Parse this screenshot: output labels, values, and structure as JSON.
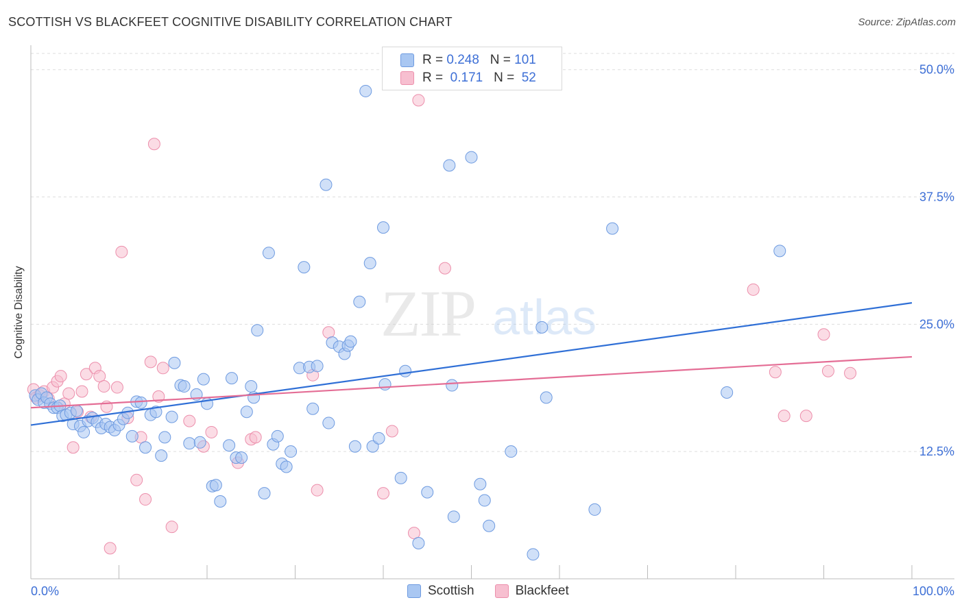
{
  "header": {
    "title": "SCOTTISH VS BLACKFEET COGNITIVE DISABILITY CORRELATION CHART",
    "source": "Source: ZipAtlas.com"
  },
  "legend": {
    "rows": [
      {
        "r_label": "R =",
        "r_value": "0.248",
        "n_label": "N =",
        "n_value": "101"
      },
      {
        "r_label": "R =",
        "r_value": " 0.171",
        "n_label": "N =",
        "n_value": " 52"
      }
    ]
  },
  "bottom_legend": [
    "Scottish",
    "Blackfeet"
  ],
  "colors": {
    "scottish_fill": "#a9c7f2",
    "scottish_stroke": "#6d9ae0",
    "scottish_line": "#2f6fd6",
    "blackfeet_fill": "#f7bfd0",
    "blackfeet_stroke": "#ec8eab",
    "blackfeet_line": "#e46d95",
    "axis_text": "#3d6fd6",
    "grid": "#dddddd"
  },
  "chart_data": {
    "type": "scatter",
    "title": "SCOTTISH VS BLACKFEET COGNITIVE DISABILITY CORRELATION CHART",
    "xlabel": "",
    "ylabel": "Cognitive Disability",
    "xlim": [
      0,
      100
    ],
    "ylim": [
      0,
      52
    ],
    "x_tick_labels": [
      "0.0%",
      "100.0%"
    ],
    "y_ticks": [
      12.5,
      25.0,
      37.5,
      50.0
    ],
    "y_tick_labels": [
      "12.5%",
      "25.0%",
      "37.5%",
      "50.0%"
    ],
    "grid": true,
    "watermark": "ZIPatlas",
    "series": [
      {
        "name": "Scottish",
        "r": 0.248,
        "n": 101,
        "trend": [
          [
            0,
            15.1
          ],
          [
            100,
            27.1
          ]
        ],
        "points": [
          [
            0.5,
            18.0
          ],
          [
            0.8,
            17.6
          ],
          [
            1.2,
            18.2
          ],
          [
            1.5,
            17.3
          ],
          [
            1.8,
            17.8
          ],
          [
            2.2,
            17.2
          ],
          [
            2.6,
            16.8
          ],
          [
            3.0,
            16.8
          ],
          [
            3.3,
            17.0
          ],
          [
            3.6,
            16.0
          ],
          [
            4.0,
            16.1
          ],
          [
            4.5,
            16.3
          ],
          [
            4.8,
            15.2
          ],
          [
            5.2,
            16.5
          ],
          [
            5.6,
            15.0
          ],
          [
            6.0,
            14.4
          ],
          [
            6.5,
            15.5
          ],
          [
            7.0,
            15.8
          ],
          [
            7.5,
            15.4
          ],
          [
            8.0,
            14.8
          ],
          [
            8.5,
            15.2
          ],
          [
            9.0,
            14.9
          ],
          [
            9.5,
            14.6
          ],
          [
            10.0,
            15.1
          ],
          [
            10.5,
            15.7
          ],
          [
            11.0,
            16.3
          ],
          [
            11.5,
            14.0
          ],
          [
            12.0,
            17.4
          ],
          [
            12.5,
            17.3
          ],
          [
            13.0,
            12.9
          ],
          [
            13.6,
            16.1
          ],
          [
            14.2,
            16.4
          ],
          [
            14.8,
            12.1
          ],
          [
            15.2,
            13.9
          ],
          [
            16.0,
            15.9
          ],
          [
            16.3,
            21.2
          ],
          [
            17.0,
            19.0
          ],
          [
            17.4,
            18.9
          ],
          [
            18.0,
            13.3
          ],
          [
            18.8,
            18.1
          ],
          [
            19.2,
            13.4
          ],
          [
            19.6,
            19.6
          ],
          [
            20.0,
            17.2
          ],
          [
            20.6,
            9.1
          ],
          [
            21.0,
            9.2
          ],
          [
            21.5,
            7.6
          ],
          [
            22.5,
            13.1
          ],
          [
            22.8,
            19.7
          ],
          [
            23.3,
            11.9
          ],
          [
            23.9,
            11.9
          ],
          [
            24.5,
            16.4
          ],
          [
            25.0,
            18.9
          ],
          [
            25.3,
            17.8
          ],
          [
            25.7,
            24.4
          ],
          [
            26.5,
            8.4
          ],
          [
            27.0,
            32.0
          ],
          [
            27.5,
            13.2
          ],
          [
            28.0,
            14.0
          ],
          [
            28.5,
            11.3
          ],
          [
            29.0,
            11.0
          ],
          [
            29.5,
            12.5
          ],
          [
            30.5,
            20.7
          ],
          [
            31.0,
            30.6
          ],
          [
            31.6,
            20.8
          ],
          [
            32.0,
            16.7
          ],
          [
            32.5,
            20.9
          ],
          [
            33.5,
            38.7
          ],
          [
            33.8,
            15.3
          ],
          [
            34.2,
            23.2
          ],
          [
            35.0,
            22.8
          ],
          [
            35.6,
            22.1
          ],
          [
            36.0,
            22.9
          ],
          [
            36.3,
            23.3
          ],
          [
            36.8,
            13.0
          ],
          [
            37.3,
            27.2
          ],
          [
            38.0,
            47.9
          ],
          [
            38.5,
            31.0
          ],
          [
            38.8,
            13.0
          ],
          [
            39.5,
            13.8
          ],
          [
            40.0,
            34.5
          ],
          [
            40.2,
            19.1
          ],
          [
            42.0,
            9.9
          ],
          [
            42.5,
            20.4
          ],
          [
            44.0,
            3.5
          ],
          [
            45.0,
            8.5
          ],
          [
            47.5,
            40.6
          ],
          [
            47.8,
            19.0
          ],
          [
            48.0,
            6.1
          ],
          [
            50.0,
            41.4
          ],
          [
            51.0,
            9.3
          ],
          [
            51.5,
            7.7
          ],
          [
            52.0,
            5.2
          ],
          [
            54.5,
            12.5
          ],
          [
            57.0,
            2.4
          ],
          [
            58.0,
            24.7
          ],
          [
            58.5,
            17.8
          ],
          [
            64.0,
            6.8
          ],
          [
            66.0,
            34.4
          ],
          [
            79.0,
            18.3
          ],
          [
            85.0,
            32.2
          ],
          [
            54.0,
            50.0
          ]
        ]
      },
      {
        "name": "Blackfeet",
        "r": 0.171,
        "n": 52,
        "trend": [
          [
            0,
            16.8
          ],
          [
            100,
            21.8
          ]
        ],
        "points": [
          [
            0.3,
            18.6
          ],
          [
            0.6,
            17.8
          ],
          [
            1.0,
            18.0
          ],
          [
            1.5,
            18.4
          ],
          [
            2.0,
            17.7
          ],
          [
            2.5,
            18.8
          ],
          [
            3.0,
            19.4
          ],
          [
            3.4,
            19.9
          ],
          [
            3.8,
            17.2
          ],
          [
            4.3,
            18.2
          ],
          [
            4.8,
            12.9
          ],
          [
            5.3,
            16.4
          ],
          [
            5.8,
            18.4
          ],
          [
            6.3,
            20.1
          ],
          [
            6.8,
            15.9
          ],
          [
            7.3,
            20.7
          ],
          [
            7.8,
            19.9
          ],
          [
            8.3,
            18.9
          ],
          [
            8.6,
            16.9
          ],
          [
            9.0,
            3.0
          ],
          [
            9.8,
            18.8
          ],
          [
            10.3,
            32.1
          ],
          [
            11.0,
            15.8
          ],
          [
            12.0,
            9.7
          ],
          [
            12.5,
            13.9
          ],
          [
            13.0,
            7.8
          ],
          [
            13.6,
            21.3
          ],
          [
            14.0,
            42.7
          ],
          [
            14.5,
            17.9
          ],
          [
            15.0,
            20.7
          ],
          [
            16.0,
            5.1
          ],
          [
            18.0,
            15.5
          ],
          [
            19.6,
            13.0
          ],
          [
            20.5,
            14.4
          ],
          [
            23.5,
            11.4
          ],
          [
            25.0,
            13.7
          ],
          [
            25.5,
            13.9
          ],
          [
            32.0,
            20.0
          ],
          [
            32.5,
            8.7
          ],
          [
            33.8,
            24.2
          ],
          [
            40.0,
            8.4
          ],
          [
            41.0,
            14.5
          ],
          [
            43.5,
            4.5
          ],
          [
            44.0,
            47.0
          ],
          [
            47.0,
            30.5
          ],
          [
            82.0,
            28.4
          ],
          [
            84.5,
            20.3
          ],
          [
            85.5,
            16.0
          ],
          [
            88.0,
            16.0
          ],
          [
            90.0,
            24.0
          ],
          [
            90.5,
            20.4
          ],
          [
            93.0,
            20.2
          ]
        ]
      }
    ]
  }
}
